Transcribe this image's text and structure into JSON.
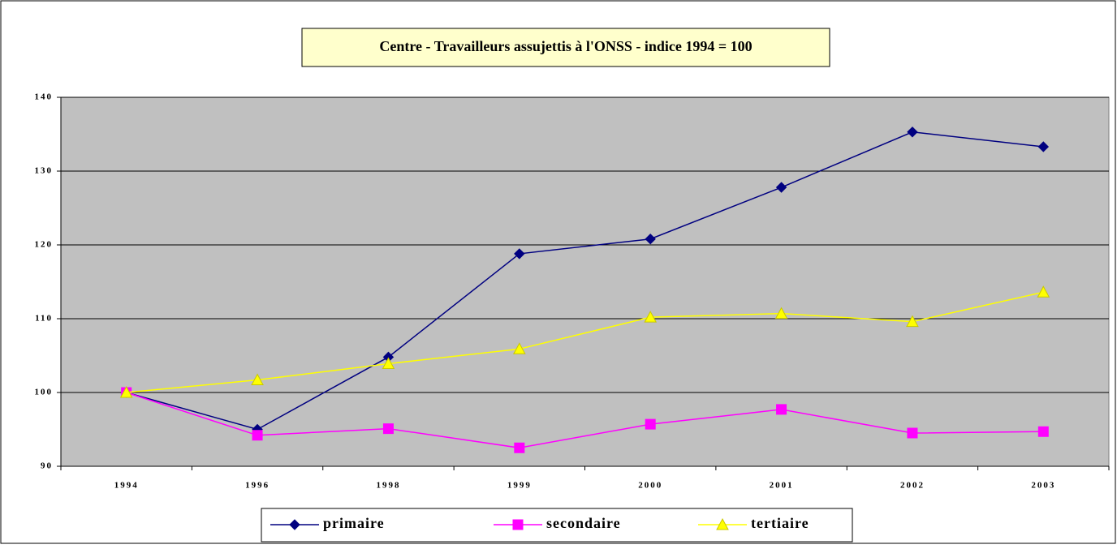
{
  "chart_data": {
    "type": "line",
    "title": "Centre - Travailleurs assujettis à l'ONSS - indice 1994 = 100",
    "categories": [
      "1994",
      "1996",
      "1998",
      "1999",
      "2000",
      "2001",
      "2002",
      "2003"
    ],
    "series": [
      {
        "name": "primaire",
        "color": "#000080",
        "marker": "diamond",
        "values": [
          100,
          95,
          104.8,
          118.8,
          120.8,
          127.8,
          135.3,
          133.3
        ]
      },
      {
        "name": "secondaire",
        "color": "#ff00ff",
        "marker": "square",
        "values": [
          100,
          94.2,
          95.1,
          92.5,
          95.7,
          97.7,
          94.5,
          94.7
        ]
      },
      {
        "name": "tertiaire",
        "color": "#ffff00",
        "marker": "triangle",
        "values": [
          100,
          101.7,
          103.9,
          105.9,
          110.2,
          110.7,
          109.6,
          113.6
        ]
      }
    ],
    "ylim": [
      90,
      140
    ],
    "yticks": [
      90,
      100,
      110,
      120,
      130,
      140
    ],
    "grid": true,
    "legend": "bottom"
  }
}
